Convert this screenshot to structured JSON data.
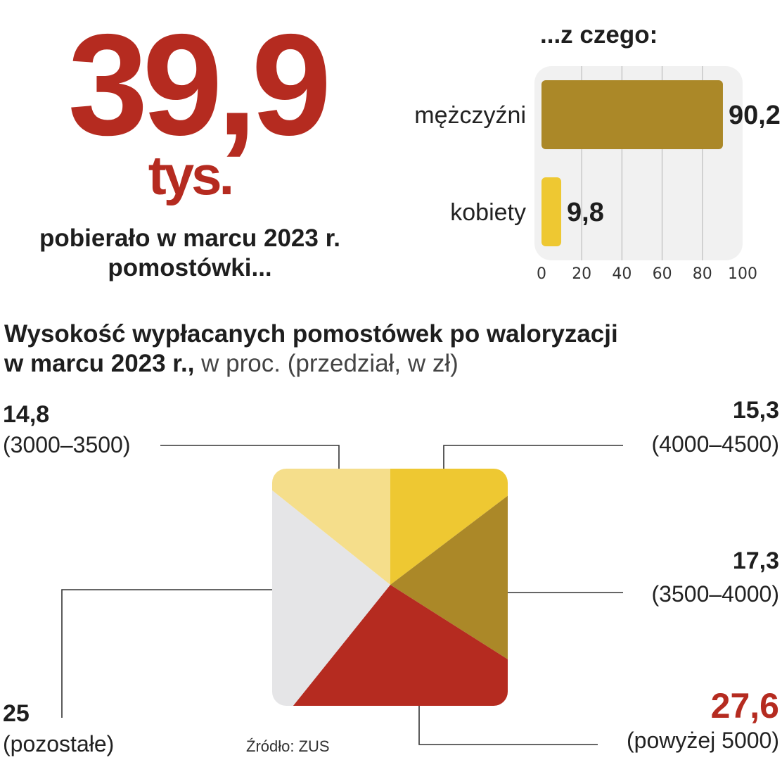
{
  "colors": {
    "red": "#b52b20",
    "dark_gold": "#ab8828",
    "gold": "#eec832",
    "light_gold": "#f5de8b",
    "grey": "#e5e5e7",
    "panel": "#f1f1f1",
    "grid": "#c8c8c8",
    "leader": "#333333"
  },
  "headline": {
    "value": "39,9",
    "unit": "tys.",
    "caption_line1": "pobierało w marcu 2023 r.",
    "caption_line2": "pomostówki..."
  },
  "chart_data": [
    {
      "type": "bar",
      "orientation": "horizontal",
      "title": "...z czego:",
      "categories": [
        "mężczyźni",
        "kobiety"
      ],
      "values": [
        90.2,
        9.8
      ],
      "value_labels": [
        "90,2",
        "9,8"
      ],
      "xlim": [
        0,
        100
      ],
      "xticks": [
        0,
        20,
        40,
        60,
        80,
        100
      ],
      "bar_colors": [
        "#ab8828",
        "#eec832"
      ],
      "grid": true
    },
    {
      "type": "pie",
      "shape": "rounded-square",
      "title_bold": "Wysokość wypłacanych pomostówek po waloryzacji",
      "title_bold_2": "w marcu 2023 r.,",
      "title_rest": " w proc. (przedział, w zł)",
      "slices": [
        {
          "value": 15.3,
          "label": "15,3",
          "range": "(4000–4500)",
          "color": "#eec832"
        },
        {
          "value": 17.3,
          "label": "17,3",
          "range": "(3500–4000)",
          "color": "#ab8828"
        },
        {
          "value": 27.6,
          "label": "27,6",
          "range": "(powyżej 5000)",
          "color": "#b52b20",
          "highlight": true
        },
        {
          "value": 25,
          "label": "25",
          "range": "(pozostałe)",
          "color": "#e5e5e7"
        },
        {
          "value": 14.8,
          "label": "14,8",
          "range": "(3000–3500)",
          "color": "#f5de8b"
        }
      ]
    }
  ],
  "source": "Źródło: ZUS"
}
